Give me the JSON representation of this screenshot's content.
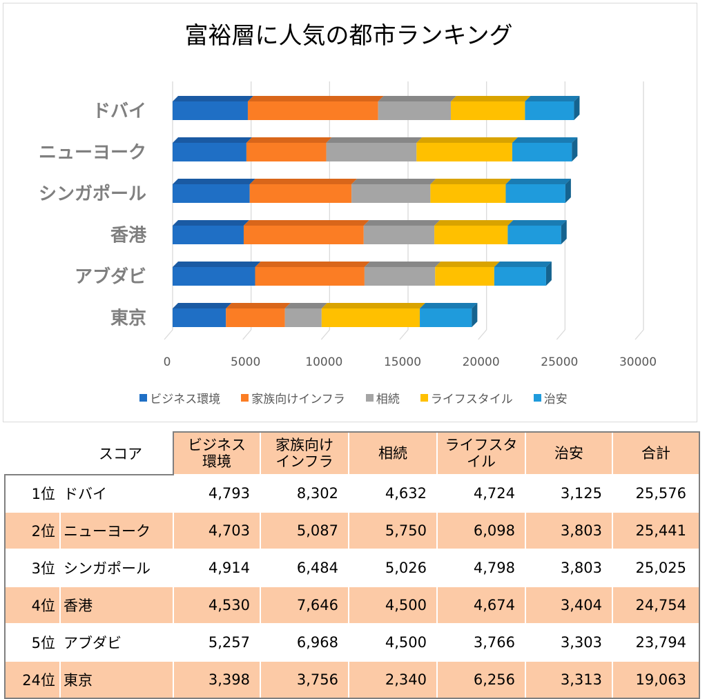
{
  "chart_data": {
    "type": "bar",
    "orientation": "horizontal",
    "stacked": true,
    "title": "富裕層に人気の都市ランキング",
    "xlabel": "",
    "ylabel": "",
    "xlim": [
      0,
      30000
    ],
    "xticks": [
      "0",
      "5000",
      "10000",
      "15000",
      "20000",
      "25000",
      "30000"
    ],
    "grid": true,
    "legend_position": "bottom",
    "categories": [
      "ドバイ",
      "ニューヨーク",
      "シンガポール",
      "香港",
      "アブダビ",
      "東京"
    ],
    "series": [
      {
        "name": "ビジネス環境",
        "color": "#1f6fc5",
        "top_color": "#1a5aa3",
        "values": [
          4793,
          4703,
          4914,
          4530,
          5257,
          3398
        ]
      },
      {
        "name": "家族向けインフラ",
        "color": "#fb7d24",
        "top_color": "#d9661a",
        "values": [
          8302,
          5087,
          6484,
          7646,
          6968,
          3756
        ]
      },
      {
        "name": "相続",
        "color": "#a5a5a5",
        "top_color": "#878787",
        "values": [
          4632,
          5750,
          5026,
          4500,
          4500,
          2340
        ]
      },
      {
        "name": "ライフスタイル",
        "color": "#ffc000",
        "top_color": "#d9a300",
        "values": [
          4724,
          6098,
          4798,
          4674,
          3766,
          6256
        ]
      },
      {
        "name": "治安",
        "color": "#1f9bdc",
        "top_color": "#1a7cb3",
        "values": [
          3125,
          3803,
          3803,
          3404,
          3303,
          3313
        ]
      }
    ]
  },
  "table": {
    "corner_label": "スコア",
    "headers": [
      {
        "line1": "ビジネス",
        "line2": "環境"
      },
      {
        "line1": "家族向け",
        "line2": "インフラ"
      },
      {
        "line1": "相続",
        "line2": ""
      },
      {
        "line1": "ライフスタ",
        "line2": "イル"
      },
      {
        "line1": "治安",
        "line2": ""
      },
      {
        "line1": "合計",
        "line2": ""
      }
    ],
    "rows": [
      {
        "rank": "1位",
        "city": "ドバイ",
        "values": [
          "4,793",
          "8,302",
          "4,632",
          "4,724",
          "3,125",
          "25,576"
        ]
      },
      {
        "rank": "2位",
        "city": "ニューヨーク",
        "values": [
          "4,703",
          "5,087",
          "5,750",
          "6,098",
          "3,803",
          "25,441"
        ]
      },
      {
        "rank": "3位",
        "city": "シンガポール",
        "values": [
          "4,914",
          "6,484",
          "5,026",
          "4,798",
          "3,803",
          "25,025"
        ]
      },
      {
        "rank": "4位",
        "city": "香港",
        "values": [
          "4,530",
          "7,646",
          "4,500",
          "4,674",
          "3,404",
          "24,754"
        ]
      },
      {
        "rank": "5位",
        "city": "アブダビ",
        "values": [
          "5,257",
          "6,968",
          "4,500",
          "3,766",
          "3,303",
          "23,794"
        ]
      },
      {
        "rank": "24位",
        "city": "東京",
        "values": [
          "3,398",
          "3,756",
          "2,340",
          "6,256",
          "3,313",
          "19,063"
        ]
      }
    ]
  }
}
